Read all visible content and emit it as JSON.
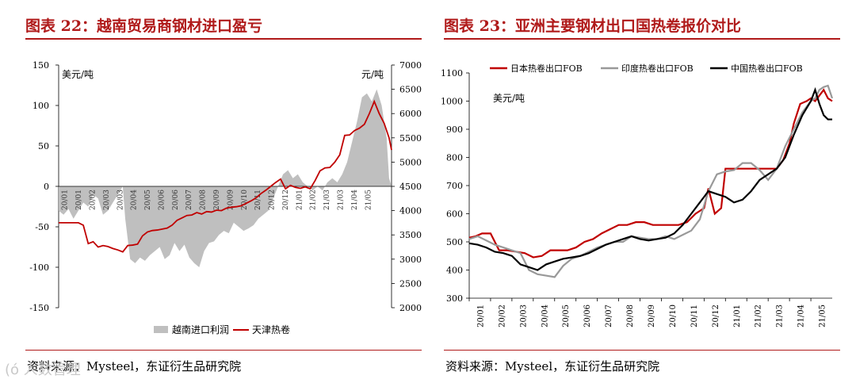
{
  "watermark": "(ó 人数管理",
  "panels": {
    "left": {
      "title": "图表 22：越南贸易商钢材进口盈亏",
      "source": "资料来源：Mysteel，东证衍生品研究院"
    },
    "right": {
      "title": "图表 23：亚洲主要钢材出口国热卷报价对比",
      "source": "资料来源：Mysteel，东证衍生品研究院"
    }
  },
  "chart_data": [
    {
      "type": "area",
      "title": "图表 22：越南贸易商钢材进口盈亏",
      "left_unit": "美元/吨",
      "right_unit": "元/吨",
      "ylim_left": [
        -150,
        150
      ],
      "ylim_right": [
        2000,
        7000
      ],
      "yticks_left": [
        150,
        100,
        50,
        0,
        -50,
        -100,
        -150
      ],
      "yticks_right": [
        7000,
        6500,
        6000,
        5500,
        5000,
        4500,
        4000,
        3500,
        3000,
        2500,
        2000
      ],
      "x_ticks": [
        "20/01",
        "20/01",
        "20/02",
        "20/03",
        "20/03",
        "20/04",
        "20/05",
        "20/06",
        "20/06",
        "20/07",
        "20/08",
        "20/09",
        "20/09",
        "20/10",
        "20/11",
        "20/12",
        "20/12",
        "21/01",
        "21/02",
        "21/03",
        "21/03",
        "21/04",
        "21/05"
      ],
      "legend_position": "bottom",
      "series": [
        {
          "name": "越南进口利润",
          "type": "area",
          "axis": "left",
          "color": "#bfbfbf",
          "x": [
            0,
            4,
            8,
            12,
            16,
            20,
            24,
            28,
            32,
            36,
            40,
            44,
            48,
            52,
            54,
            58,
            62,
            66,
            70,
            74,
            78,
            82,
            86,
            90,
            94,
            98,
            102,
            106,
            110,
            114,
            118,
            122,
            126,
            130,
            134,
            138,
            142,
            146,
            150,
            154,
            158,
            162,
            166,
            170,
            174,
            178,
            182,
            186,
            190,
            194,
            198,
            202,
            206,
            210,
            214,
            218,
            222,
            226,
            230,
            234,
            238,
            242,
            246,
            250,
            254,
            258,
            262,
            266,
            268,
            270
          ],
          "values": [
            -30,
            -35,
            -28,
            -40,
            -30,
            -20,
            -25,
            -10,
            -15,
            -35,
            -30,
            -20,
            -10,
            0,
            -40,
            -90,
            -95,
            -88,
            -92,
            -85,
            -80,
            -75,
            -90,
            -85,
            -70,
            -80,
            -72,
            -88,
            -95,
            -100,
            -80,
            -70,
            -68,
            -60,
            -55,
            -58,
            -45,
            -50,
            -55,
            -52,
            -48,
            -40,
            -35,
            -30,
            -15,
            0,
            15,
            20,
            10,
            15,
            5,
            0,
            -5,
            0,
            -5,
            5,
            10,
            5,
            15,
            30,
            55,
            80,
            110,
            115,
            105,
            120,
            100,
            60,
            10,
            0
          ]
        },
        {
          "name": "天津热卷",
          "type": "line",
          "axis": "right",
          "color": "#c00000",
          "x": [
            0,
            4,
            8,
            12,
            16,
            20,
            24,
            28,
            32,
            36,
            40,
            44,
            48,
            52,
            56,
            60,
            64,
            68,
            72,
            76,
            80,
            84,
            88,
            92,
            96,
            100,
            104,
            108,
            112,
            116,
            120,
            124,
            128,
            132,
            136,
            140,
            144,
            148,
            152,
            156,
            160,
            164,
            168,
            172,
            176,
            180,
            184,
            188,
            192,
            196,
            200,
            204,
            208,
            212,
            216,
            220,
            224,
            228,
            232,
            236,
            240,
            244,
            248,
            252,
            256,
            260,
            264,
            268,
            270
          ],
          "values": [
            3750,
            3750,
            3750,
            3750,
            3750,
            3700,
            3320,
            3360,
            3250,
            3280,
            3260,
            3220,
            3190,
            3150,
            3280,
            3290,
            3310,
            3480,
            3560,
            3590,
            3600,
            3620,
            3640,
            3700,
            3800,
            3850,
            3900,
            3910,
            3960,
            3930,
            3980,
            3970,
            4010,
            4000,
            4050,
            4070,
            4080,
            4100,
            4150,
            4200,
            4260,
            4350,
            4420,
            4500,
            4580,
            4650,
            4450,
            4520,
            4480,
            4460,
            4490,
            4450,
            4620,
            4820,
            4880,
            4890,
            5000,
            5150,
            5550,
            5560,
            5650,
            5700,
            5780,
            6000,
            6250,
            6000,
            5800,
            5500,
            5250
          ]
        }
      ]
    },
    {
      "type": "line",
      "title": "图表 23：亚洲主要钢材出口国热卷报价对比",
      "ylabel": "美元/吨",
      "ylim": [
        300,
        1100
      ],
      "yticks": [
        1100,
        1000,
        900,
        800,
        700,
        600,
        500,
        400,
        300
      ],
      "x_ticks": [
        "20/01",
        "20/02",
        "20/03",
        "20/04",
        "20/05",
        "20/06",
        "20/07",
        "20/08",
        "20/09",
        "20/10",
        "20/11",
        "20/12",
        "21/01",
        "21/02",
        "21/03",
        "21/04",
        "21/05"
      ],
      "legend_position": "top",
      "series": [
        {
          "name": "日本热卷出口FOB",
          "color": "#c00000",
          "x": [
            0,
            0.3,
            0.6,
            1,
            1.4,
            1.8,
            2.2,
            2.6,
            3,
            3.4,
            3.8,
            4.2,
            4.6,
            5,
            5.4,
            5.8,
            6.2,
            6.6,
            7,
            7.4,
            7.8,
            8.2,
            8.6,
            9,
            9.4,
            9.8,
            10.2,
            10.6,
            11,
            11.2,
            11.5,
            11.8,
            12.0,
            12.2,
            12.5,
            12.8,
            13.2,
            13.6,
            14,
            14.4,
            14.7,
            15,
            15.2,
            15.5,
            15.8,
            16,
            16.2,
            16.4,
            16.6,
            16.8,
            17
          ],
          "values": [
            515,
            520,
            530,
            530,
            470,
            470,
            465,
            460,
            445,
            450,
            470,
            470,
            470,
            480,
            500,
            510,
            530,
            545,
            560,
            560,
            570,
            570,
            560,
            560,
            560,
            560,
            570,
            600,
            620,
            690,
            600,
            620,
            760,
            760,
            760,
            760,
            760,
            760,
            760,
            760,
            790,
            850,
            920,
            990,
            1000,
            1010,
            1000,
            1020,
            1040,
            1010,
            1000
          ]
        },
        {
          "name": "印度热卷出口FOB",
          "color": "#999999",
          "x": [
            0,
            0.4,
            0.8,
            1.2,
            1.6,
            2,
            2.4,
            2.8,
            3.2,
            3.6,
            4,
            4.4,
            4.8,
            5.2,
            5.6,
            6,
            6.4,
            6.8,
            7.2,
            7.6,
            8,
            8.4,
            8.8,
            9.2,
            9.6,
            10,
            10.4,
            10.8,
            11.2,
            11.6,
            12,
            12.4,
            12.8,
            13.2,
            13.6,
            14,
            14.4,
            14.8,
            15.2,
            15.6,
            16,
            16.2,
            16.4,
            16.6,
            16.8,
            17
          ],
          "values": [
            510,
            520,
            505,
            490,
            480,
            470,
            460,
            400,
            385,
            380,
            375,
            415,
            440,
            450,
            465,
            480,
            490,
            500,
            500,
            520,
            515,
            510,
            510,
            520,
            510,
            525,
            540,
            580,
            680,
            740,
            750,
            755,
            780,
            780,
            755,
            720,
            760,
            840,
            900,
            960,
            1000,
            1010,
            1040,
            1050,
            1055,
            1010
          ]
        },
        {
          "name": "中国热卷出口FOB",
          "color": "#000000",
          "x": [
            0,
            0.4,
            0.8,
            1.2,
            1.6,
            2,
            2.4,
            2.8,
            3.2,
            3.6,
            4,
            4.4,
            4.8,
            5.2,
            5.6,
            6,
            6.4,
            6.8,
            7.2,
            7.6,
            8,
            8.4,
            8.8,
            9.2,
            9.6,
            10,
            10.4,
            10.8,
            11.2,
            11.6,
            12,
            12.4,
            12.8,
            13.2,
            13.6,
            14,
            14.4,
            14.8,
            15.2,
            15.6,
            16,
            16.2,
            16.4,
            16.6,
            16.8,
            17
          ],
          "values": [
            495,
            490,
            480,
            465,
            460,
            450,
            420,
            410,
            400,
            420,
            430,
            440,
            445,
            450,
            460,
            475,
            490,
            500,
            510,
            520,
            510,
            505,
            510,
            515,
            530,
            560,
            600,
            640,
            680,
            670,
            660,
            640,
            650,
            680,
            720,
            740,
            760,
            800,
            880,
            950,
            1000,
            1040,
            990,
            950,
            935,
            935
          ]
        }
      ]
    }
  ]
}
